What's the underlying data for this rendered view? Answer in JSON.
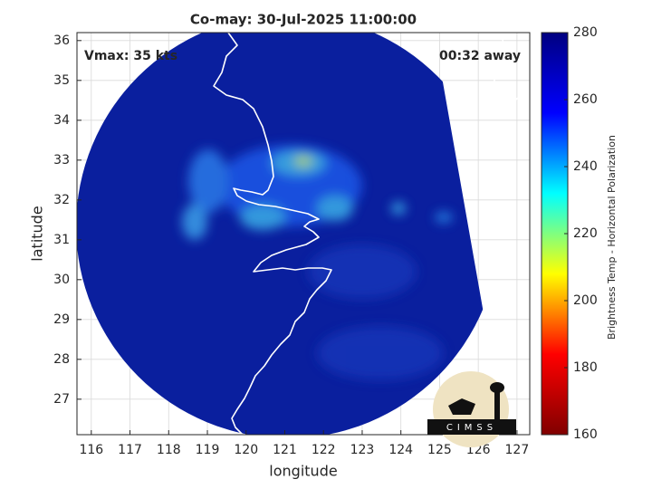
{
  "chart_data": {
    "type": "map",
    "title": "Co-may: 30-Jul-2025 11:00:00",
    "x_label": "longitude",
    "y_label": "latitude",
    "xlim": [
      115.63,
      127.33
    ],
    "ylim": [
      26.11,
      36.2
    ],
    "xticks": [
      116,
      117,
      118,
      119,
      120,
      121,
      122,
      123,
      124,
      125,
      126,
      127
    ],
    "yticks": [
      27,
      28,
      29,
      30,
      31,
      32,
      33,
      34,
      35,
      36
    ],
    "grid": true,
    "annotations": [
      "Vmax: 35 kts",
      "00:32 away"
    ],
    "logo": "CIMSS",
    "colorbar": {
      "label": "Brightness Temp - Horizontal Polarization",
      "colormap": "jet",
      "reversed": true,
      "lim": [
        160,
        280
      ],
      "ticks": [
        160,
        180,
        200,
        220,
        240,
        260,
        280
      ]
    }
  }
}
